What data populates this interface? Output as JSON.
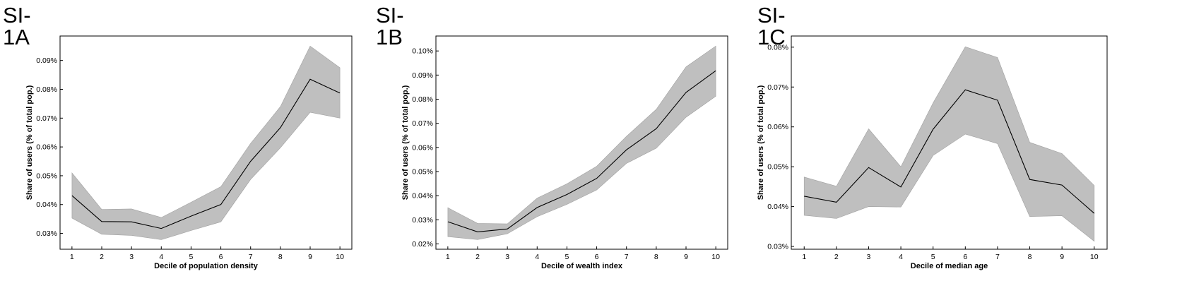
{
  "chart_data": [
    {
      "type": "line",
      "panel_label": "SI-1A",
      "xlabel": "Decile of population density",
      "ylabel": "Share of users (% of total pop.)",
      "x": [
        1,
        2,
        3,
        4,
        5,
        6,
        7,
        8,
        9,
        10
      ],
      "series": [
        {
          "values": [
            0.0431,
            0.0341,
            0.034,
            0.0317,
            0.036,
            0.04,
            0.055,
            0.0667,
            0.0835,
            0.0787
          ],
          "lower": [
            0.0353,
            0.0297,
            0.0293,
            0.0278,
            0.031,
            0.034,
            0.0487,
            0.0597,
            0.072,
            0.07
          ],
          "upper": [
            0.051,
            0.0383,
            0.0385,
            0.0355,
            0.0408,
            0.0462,
            0.0612,
            0.074,
            0.095,
            0.0875
          ]
        }
      ],
      "yticks": [
        0.03,
        0.04,
        0.05,
        0.06,
        0.07,
        0.08,
        0.09
      ],
      "ytick_labels": [
        "0.03%",
        "0.04%",
        "0.05%",
        "0.06%",
        "0.07%",
        "0.08%",
        "0.09%"
      ],
      "xlim": [
        0.6,
        10.4
      ],
      "ylim": [
        0.0245,
        0.0985
      ],
      "line_color": "#000000",
      "band_color": "#bfbfbf"
    },
    {
      "type": "line",
      "panel_label": "SI-1B",
      "xlabel": "Decile of wealth index",
      "ylabel": "Share of users (% of total pop.)",
      "x": [
        1,
        2,
        3,
        4,
        5,
        6,
        7,
        8,
        9,
        10
      ],
      "series": [
        {
          "values": [
            0.0292,
            0.025,
            0.0262,
            0.0351,
            0.0405,
            0.0472,
            0.059,
            0.0678,
            0.0828,
            0.0918
          ],
          "lower": [
            0.023,
            0.0218,
            0.0242,
            0.0313,
            0.0364,
            0.0424,
            0.0534,
            0.0597,
            0.0725,
            0.0812
          ],
          "upper": [
            0.035,
            0.0285,
            0.0283,
            0.039,
            0.0449,
            0.0522,
            0.0646,
            0.0758,
            0.0934,
            0.102
          ]
        }
      ],
      "yticks": [
        0.02,
        0.03,
        0.04,
        0.05,
        0.06,
        0.07,
        0.08,
        0.09,
        0.1
      ],
      "ytick_labels": [
        "0.02%",
        "0.03%",
        "0.04%",
        "0.05%",
        "0.06%",
        "0.07%",
        "0.08%",
        "0.09%",
        "0.10%"
      ],
      "xlim": [
        0.6,
        10.4
      ],
      "ylim": [
        0.0178,
        0.1062
      ],
      "line_color": "#000000",
      "band_color": "#bfbfbf"
    },
    {
      "type": "line",
      "panel_label": "SI-1C",
      "xlabel": "Decile of median age",
      "ylabel": "Share of users (% of total pop.)",
      "x": [
        1,
        2,
        3,
        4,
        5,
        6,
        7,
        8,
        9,
        10
      ],
      "series": [
        {
          "values": [
            0.0426,
            0.0411,
            0.0498,
            0.0449,
            0.0594,
            0.0693,
            0.0667,
            0.0468,
            0.0454,
            0.0383
          ],
          "lower": [
            0.0378,
            0.037,
            0.04,
            0.0399,
            0.0528,
            0.0582,
            0.0558,
            0.0375,
            0.0377,
            0.0313
          ],
          "upper": [
            0.0474,
            0.0451,
            0.0595,
            0.05,
            0.066,
            0.0801,
            0.0774,
            0.0561,
            0.0533,
            0.0453
          ]
        }
      ],
      "yticks": [
        0.03,
        0.04,
        0.05,
        0.06,
        0.07,
        0.08
      ],
      "ytick_labels": [
        "0.03%",
        "0.04%",
        "0.05%",
        "0.06%",
        "0.07%",
        "0.08%"
      ],
      "xlim": [
        0.6,
        10.4
      ],
      "ylim": [
        0.0293,
        0.0828
      ],
      "line_color": "#000000",
      "band_color": "#bfbfbf"
    }
  ]
}
